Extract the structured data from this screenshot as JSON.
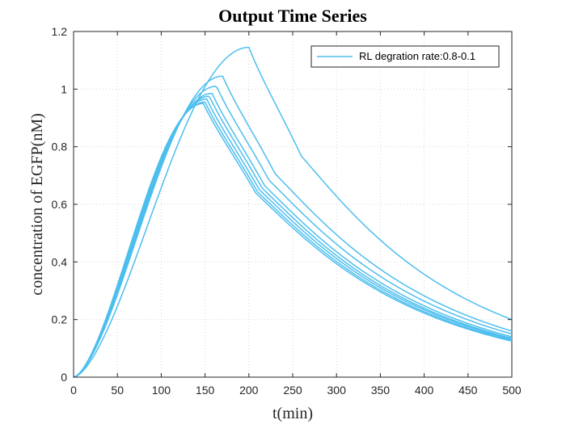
{
  "chart_data": {
    "type": "line",
    "title": "Output Time Series",
    "xlabel": "t(min)",
    "ylabel": "concentration of EGFP(nM)",
    "xlim": [
      0,
      500
    ],
    "ylim": [
      0,
      1.2
    ],
    "xticks": [
      "0",
      "50",
      "100",
      "150",
      "200",
      "250",
      "300",
      "350",
      "400",
      "450",
      "500"
    ],
    "yticks": [
      "0",
      "0.2",
      "0.4",
      "0.6",
      "0.8",
      "1",
      "1.2"
    ],
    "grid": true,
    "legend": {
      "position": "top-right",
      "entries": [
        "RL degration rate:0.8-0.1"
      ]
    },
    "line_color": "#4DBEEE",
    "series": [
      {
        "peak_x": 200,
        "peak_y": 1.145,
        "y_at_500": 0.2
      },
      {
        "peak_x": 170,
        "peak_y": 1.045,
        "y_at_500": 0.16
      },
      {
        "peak_x": 163,
        "peak_y": 1.01,
        "y_at_500": 0.15
      },
      {
        "peak_x": 158,
        "peak_y": 0.985,
        "y_at_500": 0.14
      },
      {
        "peak_x": 155,
        "peak_y": 0.975,
        "y_at_500": 0.135
      },
      {
        "peak_x": 152,
        "peak_y": 0.965,
        "y_at_500": 0.132
      },
      {
        "peak_x": 150,
        "peak_y": 0.955,
        "y_at_500": 0.128
      },
      {
        "peak_x": 148,
        "peak_y": 0.95,
        "y_at_500": 0.125
      }
    ]
  }
}
